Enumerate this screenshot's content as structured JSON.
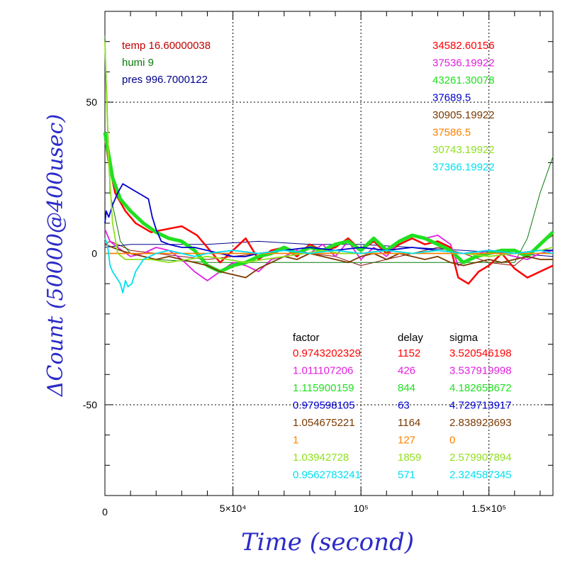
{
  "chart_data": {
    "type": "line",
    "xlabel": "Time (second)",
    "ylabel": "ΔCount (50000@400usec)",
    "xlim": [
      0,
      175000
    ],
    "ylim": [
      -80,
      80
    ],
    "x_ticks": [
      {
        "value": 0,
        "label": "0"
      },
      {
        "value": 50000,
        "label": "5×10⁴"
      },
      {
        "value": 100000,
        "label": "10⁵"
      },
      {
        "value": 150000,
        "label": "1.5×10⁵"
      }
    ],
    "y_ticks": [
      {
        "value": 50,
        "label": "50"
      },
      {
        "value": 0,
        "label": "0"
      },
      {
        "value": -50,
        "label": "-50"
      }
    ],
    "grid": "dotted",
    "env": [
      {
        "label": "temp 16.60000038",
        "color": "#c00000"
      },
      {
        "label": "humi 9",
        "color": "#0a7a0a"
      },
      {
        "label": "pres 996.7000122",
        "color": "#00008b"
      }
    ],
    "table_headers": {
      "factor": "factor",
      "delay": "delay",
      "sigma": "sigma"
    },
    "series": [
      {
        "name": "34582.60156",
        "color": "#ff0000",
        "factor": "0.9743202329",
        "delay": "1152",
        "sigma": "3.520546198",
        "x": [
          0,
          1500,
          4000,
          8000,
          12000,
          18000,
          24000,
          30000,
          36000,
          40000,
          45000,
          50000,
          55000,
          60000,
          65000,
          70000,
          75000,
          80000,
          85000,
          90000,
          95000,
          100000,
          105000,
          110000,
          115000,
          120000,
          125000,
          130000,
          135000,
          138000,
          142000,
          146000,
          150000,
          155000,
          160000,
          165000,
          170000,
          175000
        ],
        "y": [
          38,
          30,
          20,
          14,
          10,
          7,
          8,
          9,
          6,
          2,
          -3,
          1,
          5,
          -2,
          1,
          2,
          -1,
          3,
          1,
          2,
          5,
          1,
          4,
          0,
          3,
          5,
          3,
          4,
          2,
          -8,
          -10,
          -6,
          -4,
          0,
          -5,
          -8,
          -6,
          -4
        ]
      },
      {
        "name": "37536.19922",
        "color": "#e020e0",
        "factor": "1.011107206",
        "delay": "426",
        "sigma": "3.537919998",
        "x": [
          0,
          2000,
          5000,
          10000,
          15000,
          20000,
          25000,
          30000,
          35000,
          40000,
          45000,
          50000,
          55000,
          60000,
          65000,
          70000,
          75000,
          80000,
          85000,
          90000,
          95000,
          100000,
          105000,
          110000,
          115000,
          120000,
          125000,
          130000,
          135000,
          138000,
          142000,
          146000,
          150000,
          155000,
          160000,
          165000,
          170000,
          175000
        ],
        "y": [
          8,
          4,
          2,
          -1,
          0,
          2,
          1,
          -2,
          -6,
          -9,
          -6,
          -3,
          -4,
          -6,
          -2,
          -1,
          1,
          0,
          3,
          -1,
          4,
          -2,
          2,
          -1,
          4,
          6,
          5,
          6,
          3,
          -4,
          -2,
          0,
          1,
          0,
          -1,
          -2,
          0,
          1
        ]
      },
      {
        "name": "43261.30078",
        "color": "#20e020",
        "factor": "1.115900159",
        "delay": "844",
        "sigma": "4.182658672",
        "x": [
          0,
          1000,
          3000,
          6000,
          10000,
          15000,
          20000,
          25000,
          30000,
          35000,
          40000,
          45000,
          50000,
          55000,
          60000,
          65000,
          70000,
          75000,
          80000,
          85000,
          90000,
          95000,
          100000,
          105000,
          110000,
          115000,
          120000,
          125000,
          130000,
          135000,
          140000,
          145000,
          150000,
          155000,
          160000,
          165000,
          170000,
          175000
        ],
        "y": [
          40,
          35,
          25,
          18,
          14,
          10,
          7,
          5,
          4,
          1,
          -4,
          -6,
          -4,
          -3,
          -1,
          0,
          2,
          0,
          2,
          1,
          3,
          4,
          1,
          5,
          1,
          4,
          6,
          5,
          3,
          1,
          -3,
          -1,
          0,
          1,
          1,
          -1,
          3,
          7
        ]
      },
      {
        "name": "37689.5",
        "color": "#0000d0",
        "factor": "0.979598105",
        "delay": "63",
        "sigma": "4.729713917",
        "x": [
          0,
          500,
          1500,
          3000,
          5000,
          7000,
          9000,
          11000,
          13000,
          15000,
          17000,
          18500,
          20000,
          22000,
          25000,
          30000,
          35000,
          40000,
          45000,
          50000,
          55000,
          60000,
          70000,
          80000,
          90000,
          100000,
          110000,
          120000,
          130000,
          140000,
          150000,
          160000,
          170000,
          175000
        ],
        "y": [
          10,
          14,
          12,
          16,
          20,
          23,
          22,
          21,
          20,
          19,
          18,
          12,
          8,
          4,
          3,
          2,
          2,
          1,
          0,
          -1,
          -1,
          0,
          1,
          2,
          1,
          2,
          1,
          2,
          1,
          0,
          1,
          0,
          1,
          1
        ]
      },
      {
        "name": "30905.19922",
        "color": "#7a3a00",
        "factor": "1.054675221",
        "delay": "1164",
        "sigma": "2.838923693",
        "x": [
          0,
          3000,
          6000,
          10000,
          15000,
          20000,
          25000,
          30000,
          35000,
          40000,
          45000,
          50000,
          55000,
          60000,
          65000,
          70000,
          75000,
          80000,
          85000,
          90000,
          95000,
          100000,
          105000,
          110000,
          115000,
          120000,
          125000,
          130000,
          135000,
          140000,
          145000,
          150000,
          155000,
          160000,
          165000,
          170000,
          175000
        ],
        "y": [
          3,
          2,
          1,
          0,
          -1,
          -2,
          -1,
          -2,
          -3,
          -4,
          -6,
          -7,
          -8,
          -5,
          -3,
          -1,
          -2,
          0,
          -1,
          -2,
          -3,
          -1,
          0,
          -2,
          0,
          -1,
          -2,
          -1,
          -3,
          -4,
          -3,
          -2,
          -3,
          -2,
          -1,
          -2,
          -2
        ]
      },
      {
        "name": "37586.5",
        "color": "#ff8000",
        "factor": "1",
        "delay": "127",
        "sigma": "0",
        "x": [
          0,
          50000,
          100000,
          150000,
          175000
        ],
        "y": [
          0,
          0,
          0,
          0,
          0
        ]
      },
      {
        "name": "30743.19922",
        "color": "#90e020",
        "factor": "1.03942728",
        "delay": "1859",
        "sigma": "2.579907894",
        "x": [
          0,
          500,
          1500,
          3000,
          5000,
          8000,
          12000,
          18000,
          25000,
          32000,
          40000,
          48000,
          55000,
          62000,
          70000,
          78000,
          85000,
          92000,
          100000,
          110000,
          120000,
          130000,
          140000,
          150000,
          160000,
          170000,
          175000
        ],
        "y": [
          70,
          55,
          30,
          10,
          0,
          -2,
          -2,
          -2,
          -3,
          -2,
          -1,
          -2,
          -3,
          -2,
          -1,
          0,
          1,
          0,
          0,
          1,
          0,
          1,
          0,
          -1,
          0,
          1,
          2
        ]
      },
      {
        "name": "37366.19922",
        "color": "#00e0f0",
        "factor": "0.9562783241",
        "delay": "571",
        "sigma": "2.324587345",
        "x": [
          0,
          1000,
          2000,
          3000,
          4500,
          6000,
          7000,
          8000,
          9000,
          10500,
          12000,
          15000,
          20000,
          25000,
          30000,
          35000,
          40000,
          50000,
          60000,
          70000,
          80000,
          90000,
          100000,
          110000,
          120000,
          130000,
          140000,
          150000,
          160000,
          170000,
          175000
        ],
        "y": [
          5,
          3,
          -4,
          -6,
          -8,
          -10,
          -13,
          -9,
          -11,
          -10,
          -6,
          -2,
          0,
          1,
          0,
          -1,
          0,
          1,
          0,
          1,
          0,
          1,
          0,
          1,
          0,
          1,
          0,
          1,
          0,
          1,
          0
        ]
      }
    ],
    "env_traces": [
      {
        "name": "temp 16.60000038",
        "color": "#8b1010",
        "x": [
          0,
          2000,
          5000,
          10000,
          20000,
          30000,
          40000,
          50000,
          60000,
          70000,
          80000,
          90000,
          100000,
          110000,
          120000,
          130000,
          140000,
          150000,
          160000,
          170000,
          175000
        ],
        "y": [
          3,
          4,
          3,
          1,
          0,
          -1,
          -2,
          -1,
          0,
          1,
          0,
          -1,
          -4,
          -2,
          0,
          2,
          0,
          -3,
          -4,
          3,
          6
        ]
      },
      {
        "name": "humi 9",
        "color": "#0a7a0a",
        "x": [
          0,
          2000,
          6000,
          10000,
          20000,
          40000,
          60000,
          80000,
          100000,
          120000,
          140000,
          150000,
          155000,
          160000,
          165000,
          170000,
          175000
        ],
        "y": [
          72,
          20,
          4,
          0,
          -2,
          -3,
          -3,
          -3,
          -3,
          -3,
          -3,
          -3,
          -3,
          -3,
          5,
          20,
          32
        ]
      },
      {
        "name": "pres 996.7000122",
        "color": "#00008b",
        "x": [
          0,
          10000,
          20000,
          40000,
          60000,
          80000,
          100000,
          120000,
          140000,
          160000,
          175000
        ],
        "y": [
          2,
          3,
          3,
          3,
          4,
          3,
          3,
          2,
          1,
          0,
          -1
        ]
      }
    ]
  }
}
